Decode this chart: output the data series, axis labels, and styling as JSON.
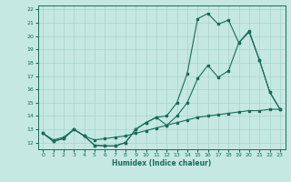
{
  "title": "",
  "xlabel": "Humidex (Indice chaleur)",
  "xlim": [
    -0.5,
    23.5
  ],
  "ylim": [
    11.5,
    22.3
  ],
  "yticks": [
    12,
    13,
    14,
    15,
    16,
    17,
    18,
    19,
    20,
    21,
    22
  ],
  "xticks": [
    0,
    1,
    2,
    3,
    4,
    5,
    6,
    7,
    8,
    9,
    10,
    11,
    12,
    13,
    14,
    15,
    16,
    17,
    18,
    19,
    20,
    21,
    22,
    23
  ],
  "bg_color": "#c5e8e2",
  "grid_color": "#a8d4cc",
  "line_color": "#1a6b5a",
  "curve1_x": [
    0,
    1,
    2,
    3,
    4,
    5,
    6,
    7,
    8,
    9,
    10,
    11,
    12,
    13,
    14,
    15,
    16,
    17,
    18,
    19,
    20,
    21,
    22,
    23
  ],
  "curve1_y": [
    12.7,
    12.1,
    12.3,
    13.0,
    12.5,
    11.8,
    11.75,
    11.75,
    12.0,
    13.0,
    13.5,
    13.9,
    13.3,
    14.0,
    15.0,
    16.8,
    17.8,
    16.9,
    17.4,
    19.5,
    20.4,
    18.2,
    15.8,
    14.5
  ],
  "curve2_x": [
    0,
    1,
    2,
    3,
    4,
    5,
    6,
    7,
    8,
    9,
    10,
    11,
    12,
    13,
    14,
    15,
    16,
    17,
    18,
    19,
    20,
    21,
    22,
    23
  ],
  "curve2_y": [
    12.7,
    12.1,
    12.3,
    13.0,
    12.5,
    11.8,
    11.75,
    11.75,
    12.0,
    13.0,
    13.5,
    13.9,
    14.0,
    15.0,
    17.2,
    21.3,
    21.7,
    20.9,
    21.2,
    19.5,
    20.3,
    18.2,
    15.8,
    14.5
  ],
  "curve3_x": [
    0,
    1,
    2,
    3,
    4,
    5,
    6,
    7,
    8,
    9,
    10,
    11,
    12,
    13,
    14,
    15,
    16,
    17,
    18,
    19,
    20,
    21,
    22,
    23
  ],
  "curve3_y": [
    12.7,
    12.2,
    12.4,
    13.0,
    12.5,
    12.2,
    12.3,
    12.4,
    12.5,
    12.7,
    12.9,
    13.1,
    13.3,
    13.5,
    13.7,
    13.9,
    14.0,
    14.1,
    14.2,
    14.3,
    14.4,
    14.4,
    14.5,
    14.5
  ]
}
